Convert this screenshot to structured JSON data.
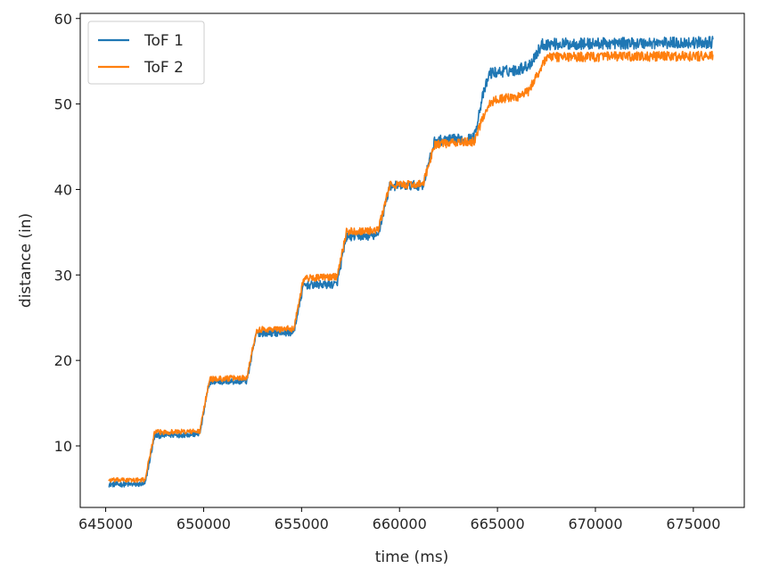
{
  "chart_data": {
    "type": "line",
    "title": "",
    "xlabel": "time (ms)",
    "ylabel": "distance (in)",
    "xlim": [
      643700,
      677600
    ],
    "ylim": [
      2.8,
      60.6
    ],
    "xticks": [
      645000,
      650000,
      655000,
      660000,
      665000,
      670000,
      675000
    ],
    "yticks": [
      10,
      20,
      30,
      40,
      50,
      60
    ],
    "grid": false,
    "legend": "top-left",
    "series": [
      {
        "name": "ToF 1",
        "color": "#1f77b4",
        "noise": 0.3,
        "points": [
          [
            645150,
            5.5
          ],
          [
            647000,
            5.5
          ],
          [
            647500,
            11.2
          ],
          [
            649800,
            11.4
          ],
          [
            650300,
            17.5
          ],
          [
            652200,
            17.6
          ],
          [
            652700,
            23.2
          ],
          [
            654600,
            23.3
          ],
          [
            655100,
            28.8
          ],
          [
            656800,
            28.9
          ],
          [
            657300,
            34.5
          ],
          [
            658900,
            34.6
          ],
          [
            659500,
            40.4
          ],
          [
            661200,
            40.5
          ],
          [
            661800,
            45.7
          ],
          [
            663800,
            46.0
          ],
          [
            664200,
            50.5
          ],
          [
            664600,
            53.6
          ],
          [
            666000,
            54.0
          ],
          [
            666600,
            54.5
          ],
          [
            667300,
            57.0
          ],
          [
            676000,
            57.2
          ]
        ]
      },
      {
        "name": "ToF 2",
        "color": "#ff7f0e",
        "noise": 0.25,
        "points": [
          [
            645150,
            6.0
          ],
          [
            647000,
            6.0
          ],
          [
            647500,
            11.6
          ],
          [
            649800,
            11.7
          ],
          [
            650300,
            17.8
          ],
          [
            652200,
            18.0
          ],
          [
            652700,
            23.6
          ],
          [
            654600,
            23.7
          ],
          [
            655100,
            29.6
          ],
          [
            656800,
            29.8
          ],
          [
            657300,
            35.1
          ],
          [
            658900,
            35.2
          ],
          [
            659500,
            40.5
          ],
          [
            661200,
            40.6
          ],
          [
            661800,
            45.3
          ],
          [
            663800,
            45.6
          ],
          [
            664500,
            49.8
          ],
          [
            665000,
            50.6
          ],
          [
            666000,
            50.8
          ],
          [
            666600,
            51.5
          ],
          [
            667500,
            55.5
          ],
          [
            676000,
            55.6
          ]
        ]
      }
    ]
  }
}
